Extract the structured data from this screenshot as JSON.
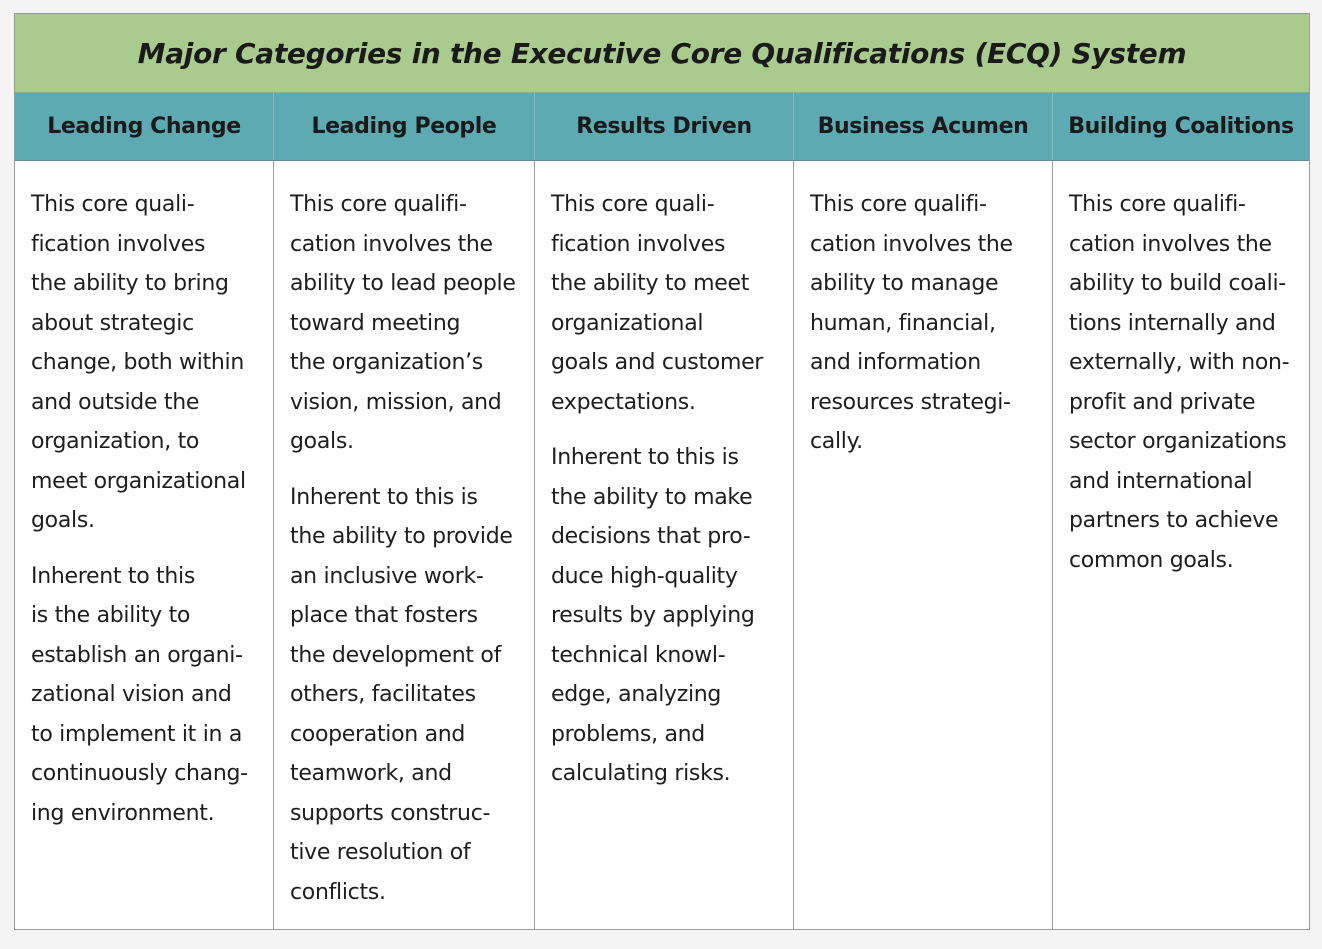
{
  "title": "Major Categories in the Executive Core Qualifications (ECQ) System",
  "colors": {
    "title_bg": "#a9cc8e",
    "header_bg": "#5daab2",
    "body_bg": "#ffffff"
  },
  "columns": [
    {
      "header": "Leading Change",
      "paragraphs": [
        [
          "This core quali-",
          "fication involves",
          "the ability to bring",
          "about strategic",
          "change, both within",
          "and outside the",
          "organization, to",
          "meet organizational",
          "goals."
        ],
        [
          "Inherent to this",
          "is the ability to",
          "establish an organi-",
          "zational vision and",
          "to implement it in a",
          "continuously chang-",
          "ing environment."
        ]
      ]
    },
    {
      "header": "Leading People",
      "paragraphs": [
        [
          "This core qualifi-",
          "cation involves the",
          "ability to lead people",
          "toward meeting",
          "the organization’s",
          "vision, mission, and",
          "goals."
        ],
        [
          "Inherent to this is",
          "the ability to provide",
          "an inclusive work-",
          "place that fosters",
          "the development of",
          "others, facilitates",
          "cooperation and",
          "teamwork, and",
          "supports construc-",
          "tive resolution of",
          "conflicts."
        ]
      ]
    },
    {
      "header": "Results Driven",
      "paragraphs": [
        [
          "This core quali-",
          "fication involves",
          "the ability to meet",
          "organizational",
          "goals and customer",
          "expectations."
        ],
        [
          "Inherent to this is",
          "the ability to make",
          "decisions that pro-",
          "duce high-quality",
          "results by applying",
          "technical knowl-",
          "edge, analyzing",
          "problems, and",
          "calculating risks."
        ]
      ]
    },
    {
      "header": "Business Acumen",
      "paragraphs": [
        [
          "This core qualifi-",
          "cation involves the",
          "ability to manage",
          "human, financial,",
          "and information",
          "resources strategi-",
          "cally."
        ]
      ]
    },
    {
      "header": "Building Coalitions",
      "paragraphs": [
        [
          "This core qualifi-",
          "cation involves the",
          "ability to build coali-",
          "tions internally and",
          "externally, with non-",
          "profit and private",
          "sector organizations",
          "and international",
          "partners to achieve",
          "common goals."
        ]
      ]
    }
  ]
}
